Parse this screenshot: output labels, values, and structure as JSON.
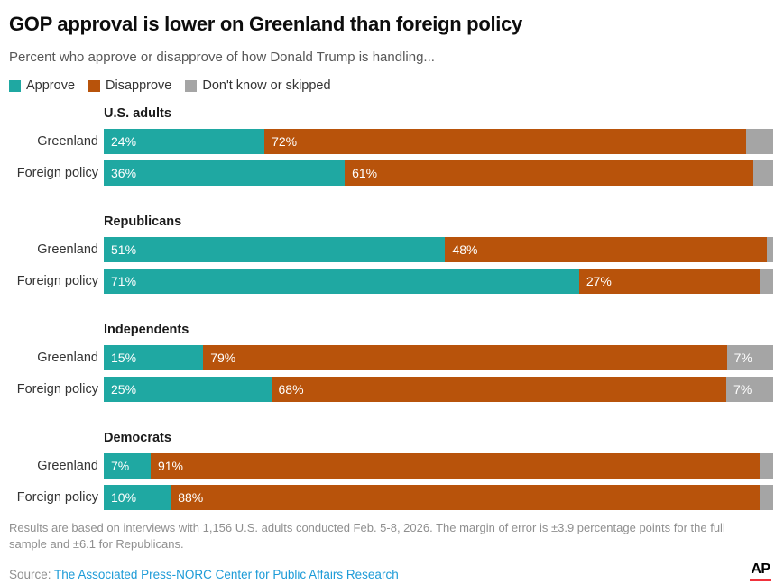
{
  "header": {
    "title": "GOP approval is lower on Greenland than foreign policy",
    "subtitle": "Percent who approve or disapprove of how Donald Trump is handling..."
  },
  "legend": {
    "items": [
      {
        "label": "Approve",
        "color": "#1fa8a2"
      },
      {
        "label": "Disapprove",
        "color": "#b8530b"
      },
      {
        "label": "Don't know or skipped",
        "color": "#a5a5a5"
      }
    ]
  },
  "colors": {
    "approve": "#1fa8a2",
    "disapprove": "#b8530b",
    "dont_know": "#a5a5a5",
    "link_blue": "#1d9bd7",
    "ap_red": "#f0323c"
  },
  "chart_data": {
    "type": "bar",
    "orientation": "horizontal-stacked",
    "title": "GOP approval is lower on Greenland than foreign policy",
    "subtitle": "Percent who approve or disapprove of how Donald Trump is handling...",
    "series_names": [
      "Approve",
      "Disapprove",
      "Don't know or skipped"
    ],
    "xlim": [
      0,
      100
    ],
    "value_unit": "%",
    "groups": [
      {
        "name": "U.S. adults",
        "rows": [
          {
            "label": "Greenland",
            "approve": 24,
            "disapprove": 72,
            "dont_know": 4,
            "dk_label": null
          },
          {
            "label": "Foreign policy",
            "approve": 36,
            "disapprove": 61,
            "dont_know": 3,
            "dk_label": null
          }
        ]
      },
      {
        "name": "Republicans",
        "rows": [
          {
            "label": "Greenland",
            "approve": 51,
            "disapprove": 48,
            "dont_know": 1,
            "dk_label": null
          },
          {
            "label": "Foreign policy",
            "approve": 71,
            "disapprove": 27,
            "dont_know": 2,
            "dk_label": null
          }
        ]
      },
      {
        "name": "Independents",
        "rows": [
          {
            "label": "Greenland",
            "approve": 15,
            "disapprove": 79,
            "dont_know": 7,
            "dk_label": "7%"
          },
          {
            "label": "Foreign policy",
            "approve": 25,
            "disapprove": 68,
            "dont_know": 7,
            "dk_label": "7%"
          }
        ]
      },
      {
        "name": "Democrats",
        "rows": [
          {
            "label": "Greenland",
            "approve": 7,
            "disapprove": 91,
            "dont_know": 2,
            "dk_label": null
          },
          {
            "label": "Foreign policy",
            "approve": 10,
            "disapprove": 88,
            "dont_know": 2,
            "dk_label": null
          }
        ]
      }
    ]
  },
  "footer": {
    "note": "Results are based on interviews with 1,156 U.S. adults conducted Feb. 5-8, 2026. The margin of error is ±3.9 percentage points for the full sample and ±6.1 for Republicans.",
    "source_label": "Source: ",
    "source_link": "The Associated Press-NORC Center for Public Affairs Research",
    "logo_text": "AP"
  }
}
